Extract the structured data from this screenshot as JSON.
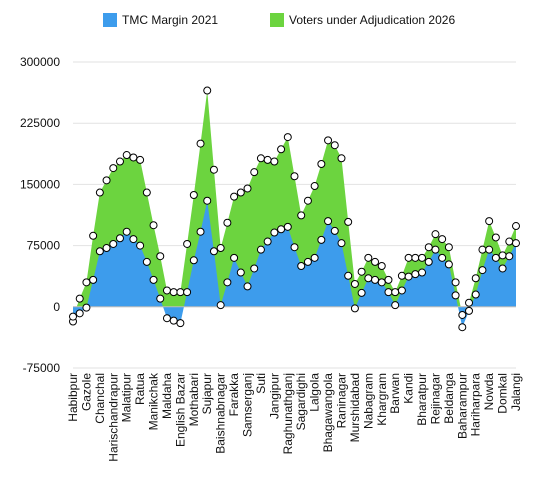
{
  "chart_data": {
    "type": "stacked_area",
    "categories": [
      "Habibpur",
      null,
      "Gazole",
      null,
      "Chanchal",
      null,
      "Harischandrapur",
      null,
      "Malatipur",
      null,
      "Ratua",
      null,
      "Manikchak",
      null,
      "Maldaha",
      null,
      "English Bazar",
      null,
      "Mothabari",
      null,
      "Sujapur",
      null,
      "Baishnabnagar",
      null,
      "Farakka",
      null,
      "Samserganj",
      null,
      "Suti",
      null,
      "Jangipur",
      null,
      "Raghunathganj",
      null,
      "Sagardighi",
      null,
      "Lalgola",
      null,
      "Bhagawangola",
      null,
      "Raninagar",
      null,
      "Murshidabad",
      null,
      "Nabagram",
      null,
      "Khargram",
      null,
      "Barwan",
      null,
      "Kandi",
      null,
      "Bharatpur",
      null,
      "Rejinagar",
      null,
      "Beldanga",
      null,
      "Baharampur",
      null,
      "Hariharpara",
      null,
      "Nowda",
      null,
      "Domkal",
      null,
      "Jalangi"
    ],
    "series": [
      {
        "name": "TMC Margin 2021",
        "color": "#3d9cec",
        "values": [
          -18000,
          -8000,
          -1000,
          33000,
          68000,
          72000,
          77000,
          84000,
          92000,
          83000,
          75000,
          55000,
          33000,
          10000,
          -14000,
          -17000,
          -20000,
          18000,
          57000,
          92000,
          130000,
          68000,
          2000,
          30000,
          60000,
          42000,
          25000,
          47000,
          70000,
          80000,
          91000,
          95000,
          98000,
          73000,
          50000,
          55000,
          60000,
          82000,
          105000,
          93000,
          78000,
          38000,
          -2000,
          17000,
          35000,
          33000,
          30000,
          18000,
          2000,
          20000,
          37000,
          40000,
          42000,
          55000,
          70000,
          60000,
          52000,
          14000,
          -25000,
          -5000,
          15000,
          45000,
          70000,
          60000,
          47000,
          62000,
          78000
        ]
      },
      {
        "name": "Voters under Adjudication 2026",
        "color": "#6cd43f",
        "values": [
          6000,
          18000,
          31000,
          54000,
          72000,
          83000,
          93000,
          94000,
          94000,
          100000,
          105000,
          85000,
          67000,
          52000,
          34000,
          35000,
          38000,
          59000,
          80000,
          108000,
          135000,
          100000,
          70000,
          73000,
          75000,
          98000,
          120000,
          118000,
          112000,
          100000,
          87000,
          98000,
          110000,
          87000,
          62000,
          75000,
          88000,
          93000,
          99000,
          105000,
          104000,
          66000,
          30000,
          26000,
          25000,
          22000,
          20000,
          15000,
          16000,
          18000,
          23000,
          20000,
          18000,
          18000,
          19000,
          23000,
          21000,
          16000,
          15000,
          10000,
          20000,
          25000,
          35000,
          25000,
          16000,
          18000,
          21000
        ]
      }
    ],
    "ylim": [
      -75000,
      300000
    ],
    "yticks": [
      -75000,
      0,
      75000,
      150000,
      225000,
      300000
    ],
    "grid": true
  }
}
